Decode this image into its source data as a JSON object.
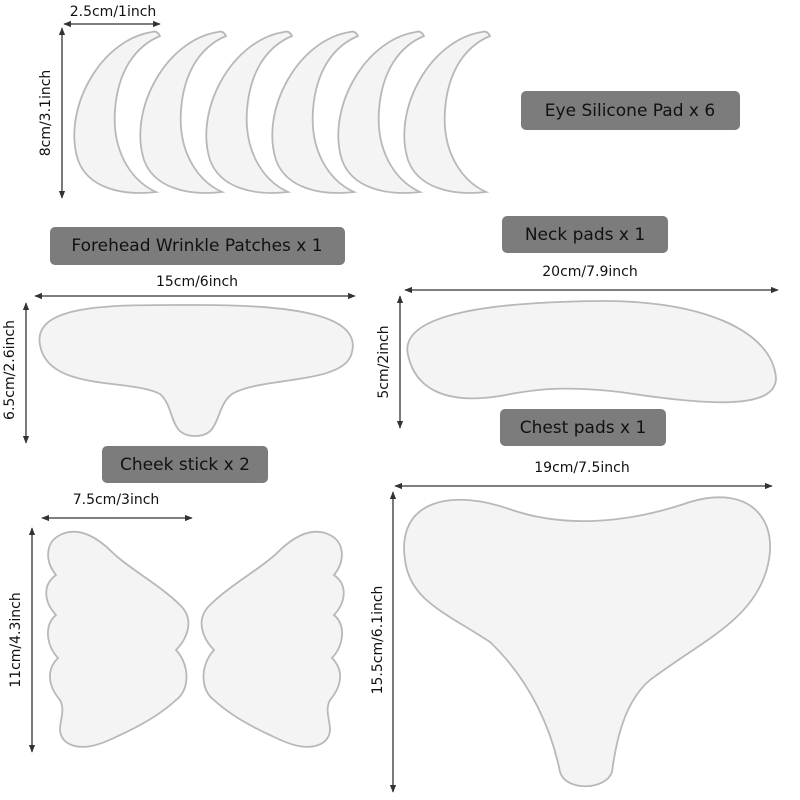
{
  "eye_pad": {
    "label": "Eye Silicone Pad x 6",
    "width": "2.5cm/1inch",
    "height": "8cm/3.1inch"
  },
  "forehead_patch": {
    "label": "Forehead Wrinkle Patches x 1",
    "width": "15cm/6inch",
    "height": "6.5cm/2.6inch"
  },
  "neck_pad": {
    "label": "Neck pads x 1",
    "width": "20cm/7.9inch",
    "height": "5cm/2inch"
  },
  "chest_pad": {
    "label": "Chest pads x 1",
    "width": "19cm/7.5inch",
    "height": "15.5cm/6.1inch"
  },
  "cheek_stick": {
    "label": "Cheek stick x 2",
    "width": "7.5cm/3inch",
    "height": "11cm/4.3inch"
  }
}
